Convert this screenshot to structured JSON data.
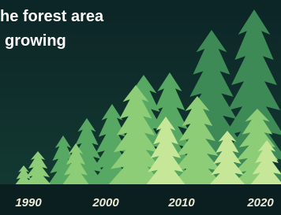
{
  "title": {
    "line1": "he forest area",
    "line2": "growing"
  },
  "axis": {
    "labels": [
      "1990",
      "2000",
      "2010",
      "2020"
    ]
  }
}
